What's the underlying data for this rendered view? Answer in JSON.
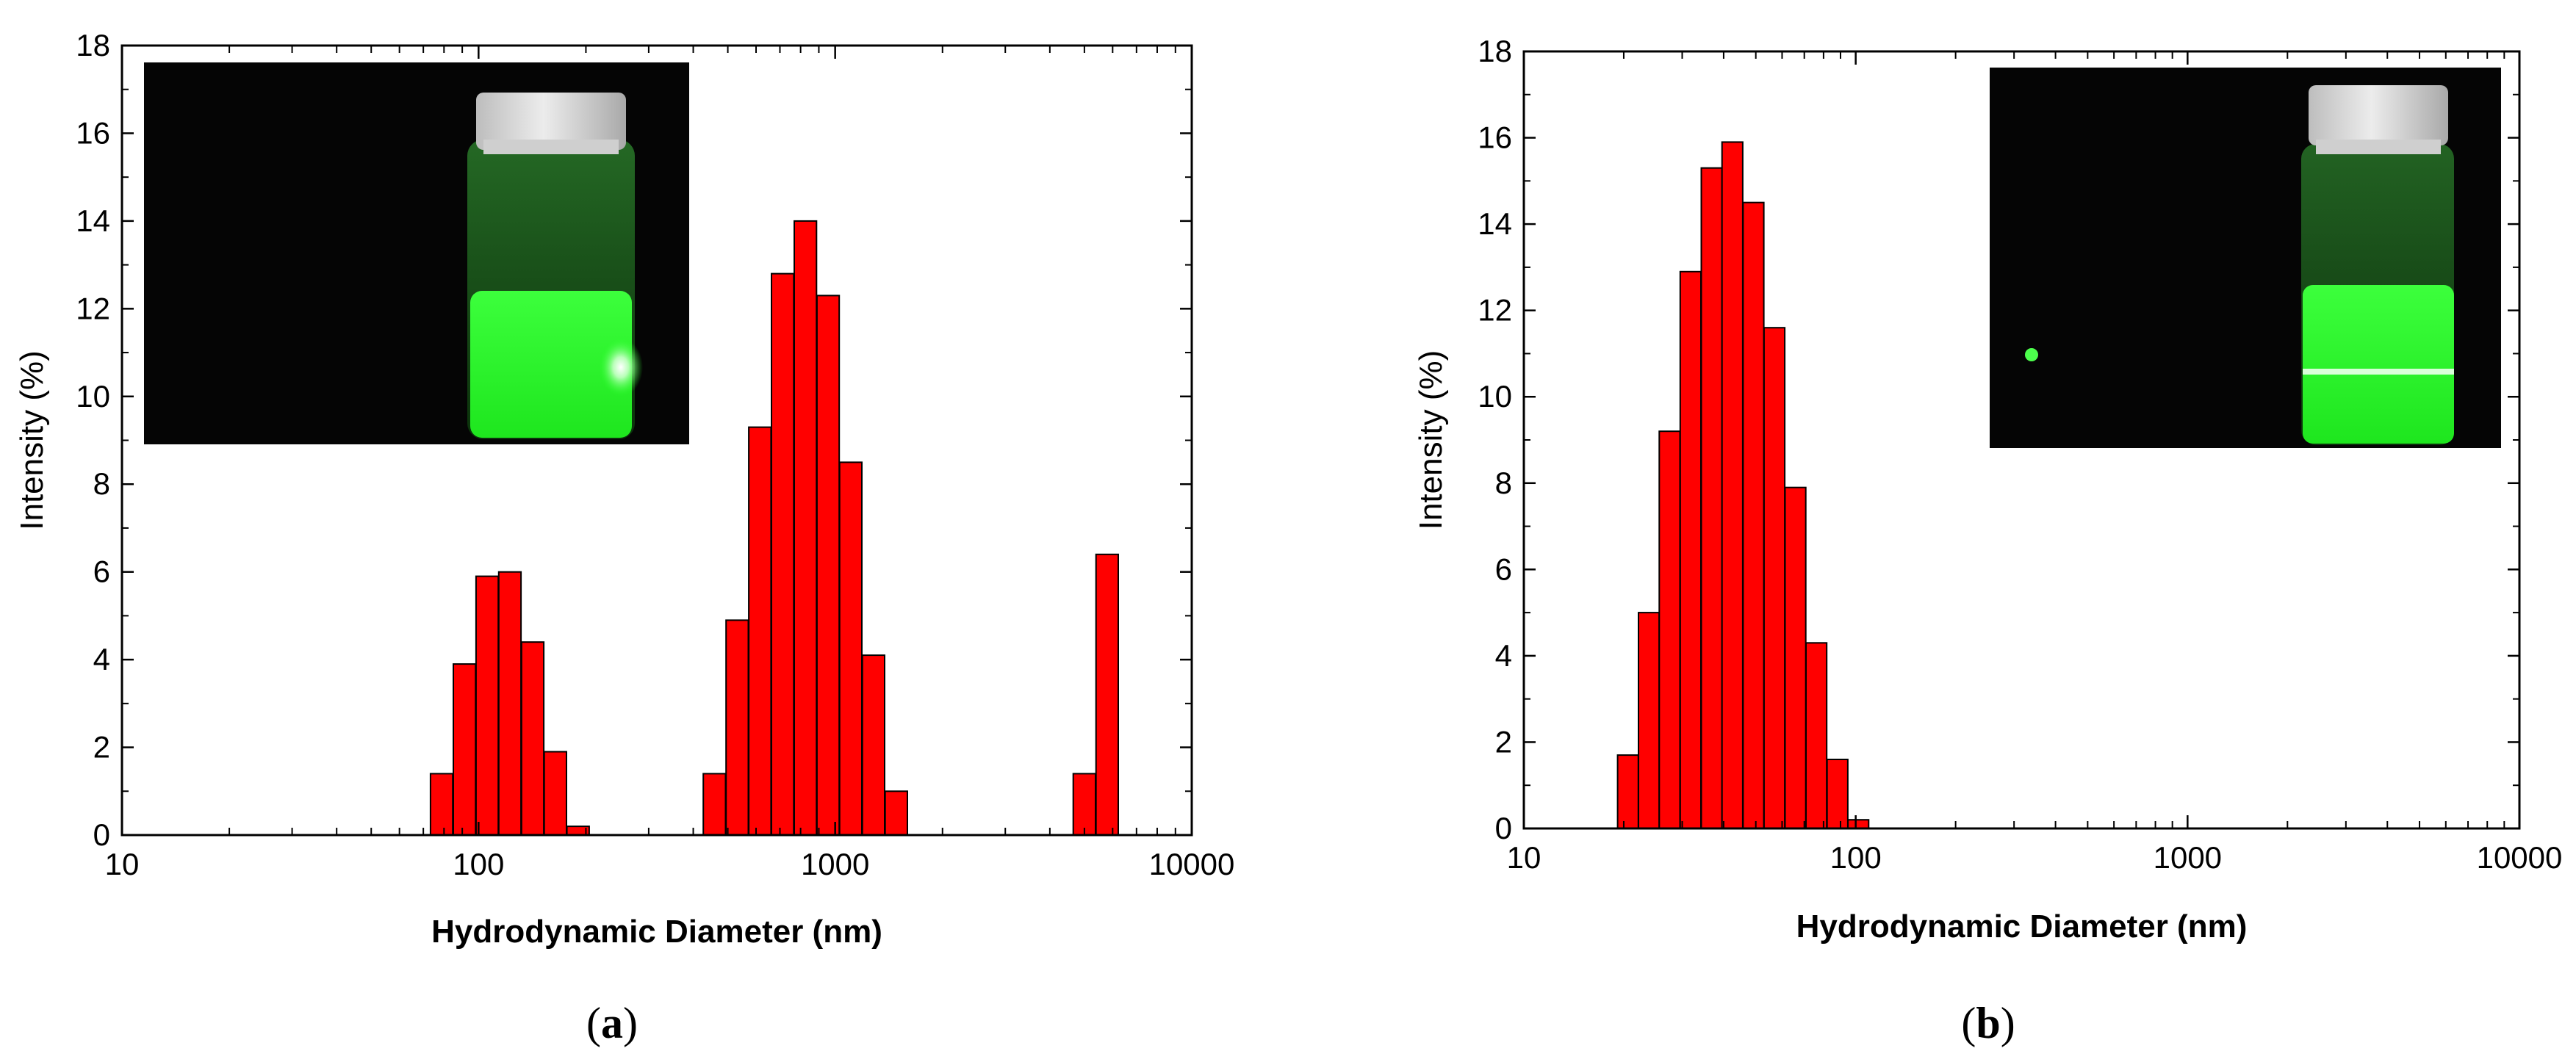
{
  "chart_data": [
    {
      "type": "bar",
      "panel_label": "(a)",
      "panel_prefix": "(",
      "panel_letter": "a",
      "panel_suffix": ")",
      "xscale": "log",
      "xlim": [
        10,
        10000
      ],
      "ylim": [
        0,
        18
      ],
      "xlabel": "Hydrodynamic Diameter (nm)",
      "ylabel": "Intensity (%)",
      "x_ticks": [
        "10",
        "100",
        "1000",
        "10000"
      ],
      "y_ticks": [
        "0",
        "2",
        "4",
        "6",
        "8",
        "10",
        "12",
        "14",
        "16",
        "18"
      ],
      "bar_color": "#ff0000",
      "inset_position": "top-left",
      "inset": "vial with green fluorescent liquid",
      "bars": [
        {
          "x": 78.8,
          "value": 1.4
        },
        {
          "x": 91.3,
          "value": 3.9
        },
        {
          "x": 105.7,
          "value": 5.9
        },
        {
          "x": 122.4,
          "value": 6.0
        },
        {
          "x": 141.8,
          "value": 4.4
        },
        {
          "x": 164.2,
          "value": 1.9
        },
        {
          "x": 190.1,
          "value": 0.2
        },
        {
          "x": 458.7,
          "value": 1.4
        },
        {
          "x": 531.2,
          "value": 4.9
        },
        {
          "x": 615.1,
          "value": 9.3
        },
        {
          "x": 712.4,
          "value": 12.8
        },
        {
          "x": 825.0,
          "value": 14.0
        },
        {
          "x": 955.4,
          "value": 12.3
        },
        {
          "x": 1106.0,
          "value": 8.5
        },
        {
          "x": 1281.0,
          "value": 4.1
        },
        {
          "x": 1484.0,
          "value": 1.0
        },
        {
          "x": 5000.0,
          "value": 1.4
        },
        {
          "x": 5791.0,
          "value": 6.4
        }
      ]
    },
    {
      "type": "bar",
      "panel_label": "(b)",
      "panel_prefix": "(",
      "panel_letter": "b",
      "panel_suffix": ")",
      "xscale": "log",
      "xlim": [
        10,
        10000
      ],
      "ylim": [
        0,
        18
      ],
      "xlabel": "Hydrodynamic Diameter (nm)",
      "ylabel": "Intensity (%)",
      "x_ticks": [
        "10",
        "100",
        "1000",
        "10000"
      ],
      "y_ticks": [
        "0",
        "2",
        "4",
        "6",
        "8",
        "10",
        "12",
        "14",
        "16",
        "18"
      ],
      "bar_color": "#ff0000",
      "inset_position": "top-right",
      "inset": "vial with green fluorescent liquid and laser beam",
      "bars": [
        {
          "x": 20.6,
          "value": 1.7
        },
        {
          "x": 23.8,
          "value": 5.0
        },
        {
          "x": 27.5,
          "value": 9.2
        },
        {
          "x": 31.8,
          "value": 12.9
        },
        {
          "x": 36.8,
          "value": 15.3
        },
        {
          "x": 42.5,
          "value": 15.9
        },
        {
          "x": 49.2,
          "value": 14.5
        },
        {
          "x": 56.9,
          "value": 11.6
        },
        {
          "x": 65.8,
          "value": 7.9
        },
        {
          "x": 76.1,
          "value": 4.3
        },
        {
          "x": 88.1,
          "value": 1.6
        },
        {
          "x": 101.8,
          "value": 0.2
        }
      ]
    }
  ]
}
